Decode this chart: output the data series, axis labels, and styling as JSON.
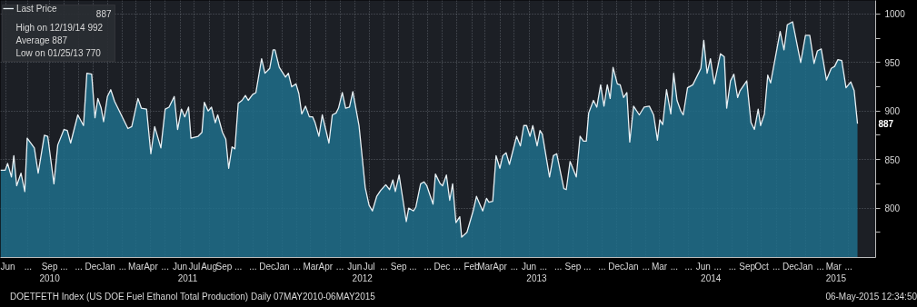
{
  "chart_data": {
    "type": "area",
    "series": [
      {
        "name": "Last Price",
        "color": "#1f6f8b",
        "x": [
          "2010-06-04",
          "2010-06-14",
          "2010-06-19",
          "2010-06-27",
          "2010-07-02",
          "2010-07-08",
          "2010-07-17",
          "2010-07-25",
          "2010-07-30",
          "2010-08-14",
          "2010-08-22",
          "2010-09-04",
          "2010-09-11",
          "2010-09-24",
          "2010-10-02",
          "2010-10-15",
          "2010-10-22",
          "2010-10-29",
          "2010-11-13",
          "2010-11-25",
          "2010-12-02",
          "2010-12-12",
          "2010-12-19",
          "2010-12-25",
          "2011-01-01",
          "2011-01-06",
          "2011-01-14",
          "2011-01-21",
          "2011-01-29",
          "2011-02-26",
          "2011-03-06",
          "2011-03-19",
          "2011-03-26",
          "2011-04-06",
          "2011-04-15",
          "2011-04-23",
          "2011-05-06",
          "2011-05-15",
          "2011-05-23",
          "2011-06-03",
          "2011-06-10",
          "2011-06-18",
          "2011-06-25",
          "2011-07-03",
          "2011-07-08",
          "2011-07-23",
          "2011-07-31",
          "2011-08-05",
          "2011-08-13",
          "2011-08-20",
          "2011-08-28",
          "2011-09-02",
          "2011-09-12",
          "2011-09-19",
          "2011-09-25",
          "2011-10-02",
          "2011-10-08",
          "2011-10-15",
          "2011-10-23",
          "2011-10-30",
          "2011-11-05",
          "2011-11-14",
          "2011-11-21",
          "2011-12-03",
          "2011-12-10",
          "2011-12-20",
          "2011-12-27",
          "2011-12-31",
          "2012-01-09",
          "2012-01-22",
          "2012-01-28",
          "2012-02-04",
          "2012-02-13",
          "2012-02-19",
          "2012-02-25",
          "2012-03-04",
          "2012-03-12",
          "2012-03-19",
          "2012-03-24",
          "2012-04-01",
          "2012-04-08",
          "2012-04-22",
          "2012-04-29",
          "2012-05-07",
          "2012-05-12",
          "2012-05-20",
          "2012-05-27",
          "2012-06-04",
          "2012-06-11",
          "2012-06-24",
          "2012-07-07",
          "2012-07-15",
          "2012-07-22",
          "2012-07-31",
          "2012-08-08",
          "2012-08-19",
          "2012-08-27",
          "2012-09-03",
          "2012-09-08",
          "2012-09-16",
          "2012-10-01",
          "2012-10-06",
          "2012-10-16",
          "2012-10-21",
          "2012-10-31",
          "2012-11-07",
          "2012-11-13",
          "2012-11-26",
          "2012-12-01",
          "2012-12-11",
          "2012-12-16",
          "2012-12-24",
          "2012-12-31",
          "2013-01-06",
          "2013-01-13",
          "2013-01-21",
          "2013-01-25",
          "2013-02-05",
          "2013-02-18",
          "2013-02-25",
          "2013-03-10",
          "2013-03-18",
          "2013-03-23",
          "2013-03-31",
          "2013-04-07",
          "2013-04-15",
          "2013-04-21",
          "2013-04-28",
          "2013-05-05",
          "2013-05-20",
          "2013-05-28",
          "2013-06-04",
          "2013-06-10",
          "2013-06-17",
          "2013-06-23",
          "2013-07-02",
          "2013-07-08",
          "2013-07-13",
          "2013-07-28",
          "2013-08-05",
          "2013-08-12",
          "2013-08-27",
          "2013-09-01",
          "2013-09-09",
          "2013-09-22",
          "2013-09-30",
          "2013-10-07",
          "2013-10-13",
          "2013-10-18",
          "2013-10-28",
          "2013-11-04",
          "2013-11-12",
          "2013-11-19",
          "2013-11-26",
          "2013-12-02",
          "2013-12-08",
          "2013-12-17",
          "2013-12-23",
          "2013-12-30",
          "2014-01-06",
          "2014-01-12",
          "2014-01-20",
          "2014-02-01",
          "2014-02-11",
          "2014-02-22",
          "2014-03-03",
          "2014-03-11",
          "2014-03-16",
          "2014-03-22",
          "2014-03-30",
          "2014-04-08",
          "2014-04-14",
          "2014-04-21",
          "2014-04-29",
          "2014-05-04",
          "2014-05-13",
          "2014-05-24",
          "2014-06-05",
          "2014-06-10",
          "2014-06-16",
          "2014-06-23",
          "2014-06-30",
          "2014-07-08",
          "2014-07-21",
          "2014-07-29",
          "2014-08-03",
          "2014-08-11",
          "2014-08-18",
          "2014-08-26",
          "2014-08-31",
          "2014-09-14",
          "2014-09-23",
          "2014-09-30",
          "2014-10-08",
          "2014-10-13",
          "2014-10-21",
          "2014-10-28",
          "2014-11-03",
          "2014-11-23",
          "2014-12-01",
          "2014-12-08",
          "2014-12-19",
          "2015-01-05",
          "2015-01-15",
          "2015-01-24",
          "2015-02-02",
          "2015-02-09",
          "2015-02-17",
          "2015-02-28",
          "2015-03-10",
          "2015-03-17",
          "2015-03-24",
          "2015-04-01",
          "2015-04-10",
          "2015-04-20",
          "2015-04-27",
          "2015-05-04"
        ],
        "values": [
          839,
          839,
          846,
          832,
          854,
          823,
          836,
          817,
          872,
          862,
          836,
          875,
          874,
          825,
          865,
          881,
          880,
          867,
          896,
          885,
          939,
          938,
          893,
          913,
          903,
          889,
          915,
          922,
          910,
          882,
          884,
          913,
          903,
          902,
          856,
          884,
          862,
          902,
          904,
          915,
          881,
          902,
          894,
          904,
          872,
          874,
          878,
          909,
          900,
          904,
          888,
          896,
          878,
          871,
          841,
          863,
          861,
          908,
          911,
          916,
          911,
          917,
          919,
          954,
          939,
          944,
          963,
          963,
          945,
          935,
          939,
          925,
          928,
          918,
          897,
          905,
          894,
          894,
          888,
          874,
          896,
          867,
          896,
          898,
          903,
          919,
          903,
          904,
          920,
          885,
          821,
          803,
          797,
          812,
          818,
          824,
          819,
          829,
          817,
          834,
          786,
          800,
          797,
          801,
          825,
          827,
          823,
          804,
          835,
          825,
          823,
          834,
          808,
          825,
          785,
          791,
          770,
          775,
          797,
          812,
          797,
          810,
          806,
          807,
          854,
          841,
          854,
          857,
          845,
          874,
          864,
          885,
          885,
          874,
          885,
          864,
          880,
          876,
          832,
          854,
          856,
          820,
          819,
          848,
          832,
          874,
          869,
          869,
          898,
          911,
          904,
          927,
          905,
          927,
          913,
          945,
          928,
          927,
          914,
          919,
          868,
          905,
          896,
          904,
          905,
          896,
          870,
          891,
          886,
          922,
          897,
          939,
          911,
          900,
          896,
          924,
          927,
          939,
          944,
          973,
          939,
          954,
          928,
          959,
          956,
          903,
          931,
          938,
          914,
          921,
          931,
          888,
          881,
          902,
          885,
          897,
          937,
          929,
          982,
          963,
          989,
          992,
          950,
          978,
          978,
          949,
          962,
          964,
          932,
          944,
          946,
          953,
          952,
          924,
          930,
          921,
          887
        ]
      }
    ],
    "xlim": [
      "2010-06-04",
      "2015-06-11"
    ],
    "ylim": [
      749,
      1014
    ],
    "xticks": [
      {
        "value": "2010-06-15",
        "label": "Jun"
      },
      {
        "value": "2010-08-01",
        "label": "..."
      },
      {
        "value": "2010-09-15",
        "label": "Sep"
      },
      {
        "value": "2010-10-15",
        "label": "..."
      },
      {
        "value": "2010-11-15",
        "label": "..."
      },
      {
        "value": "2010-12-15",
        "label": "Dec"
      },
      {
        "value": "2011-01-15",
        "label": "Jan"
      },
      {
        "value": "2011-02-15",
        "label": "..."
      },
      {
        "value": "2011-03-15",
        "label": "Mar"
      },
      {
        "value": "2011-04-15",
        "label": "Apr"
      },
      {
        "value": "2011-05-15",
        "label": "..."
      },
      {
        "value": "2011-06-15",
        "label": "Jun"
      },
      {
        "value": "2011-07-15",
        "label": "Jul"
      },
      {
        "value": "2011-08-15",
        "label": "Aug"
      },
      {
        "value": "2011-09-15",
        "label": "Sep"
      },
      {
        "value": "2011-10-15",
        "label": "..."
      },
      {
        "value": "2011-11-15",
        "label": "..."
      },
      {
        "value": "2011-12-15",
        "label": "Dec"
      },
      {
        "value": "2012-01-15",
        "label": "Jan"
      },
      {
        "value": "2012-02-15",
        "label": "..."
      },
      {
        "value": "2012-03-15",
        "label": "Mar"
      },
      {
        "value": "2012-04-15",
        "label": "Apr"
      },
      {
        "value": "2012-05-15",
        "label": "..."
      },
      {
        "value": "2012-06-15",
        "label": "Jun"
      },
      {
        "value": "2012-07-15",
        "label": "Jul"
      },
      {
        "value": "2012-08-15",
        "label": "..."
      },
      {
        "value": "2012-09-15",
        "label": "Sep"
      },
      {
        "value": "2012-10-15",
        "label": "..."
      },
      {
        "value": "2012-11-15",
        "label": "..."
      },
      {
        "value": "2012-12-15",
        "label": "Dec"
      },
      {
        "value": "2013-01-15",
        "label": "..."
      },
      {
        "value": "2013-02-15",
        "label": "Feb"
      },
      {
        "value": "2013-03-15",
        "label": "Mar"
      },
      {
        "value": "2013-04-15",
        "label": "Apr"
      },
      {
        "value": "2013-05-15",
        "label": "..."
      },
      {
        "value": "2013-06-15",
        "label": "Jun"
      },
      {
        "value": "2013-07-15",
        "label": "..."
      },
      {
        "value": "2013-08-15",
        "label": "..."
      },
      {
        "value": "2013-09-15",
        "label": "Sep"
      },
      {
        "value": "2013-10-15",
        "label": "..."
      },
      {
        "value": "2013-11-15",
        "label": "..."
      },
      {
        "value": "2013-12-15",
        "label": "Dec"
      },
      {
        "value": "2014-01-15",
        "label": "Jan"
      },
      {
        "value": "2014-02-15",
        "label": "..."
      },
      {
        "value": "2014-03-15",
        "label": "Mar"
      },
      {
        "value": "2014-04-15",
        "label": "..."
      },
      {
        "value": "2014-05-15",
        "label": "..."
      },
      {
        "value": "2014-06-15",
        "label": "Jun"
      },
      {
        "value": "2014-07-15",
        "label": "..."
      },
      {
        "value": "2014-08-15",
        "label": "..."
      },
      {
        "value": "2014-09-15",
        "label": "Sep"
      },
      {
        "value": "2014-10-15",
        "label": "Oct"
      },
      {
        "value": "2014-11-15",
        "label": "..."
      },
      {
        "value": "2014-12-15",
        "label": "Dec"
      },
      {
        "value": "2015-01-15",
        "label": "Jan"
      },
      {
        "value": "2015-02-15",
        "label": "..."
      },
      {
        "value": "2015-03-15",
        "label": "Mar"
      },
      {
        "value": "2015-04-15",
        "label": "..."
      }
    ],
    "x2lim": [
      "2010-06-04",
      "2015-06-11"
    ],
    "x2ticks": [
      {
        "value": "2010-09-15",
        "label": "2010"
      },
      {
        "value": "2011-07-01",
        "label": "2011"
      },
      {
        "value": "2012-07-01",
        "label": "2012"
      },
      {
        "value": "2013-07-01",
        "label": "2013"
      },
      {
        "value": "2014-07-01",
        "label": "2014"
      },
      {
        "value": "2015-03-20",
        "label": "2015"
      }
    ],
    "yticks": [
      {
        "value": 775,
        "label": null
      },
      800,
      {
        "value": 825,
        "label": null
      },
      850,
      {
        "value": 875,
        "label": null
      },
      900,
      {
        "value": 925,
        "label": null
      },
      950,
      {
        "value": 975,
        "label": null
      },
      1000
    ],
    "grid": true,
    "legend": "top left",
    "annotations": [
      "887",
      "887",
      "High on 12/19/14 992",
      "Average 887",
      "Low on 01/25/13 770",
      "DOETFETH Index (US DOE Fuel Ethanol Total Production)  Daily 07MAY2010-06MAY2015",
      "06-May-2015 12:34:50"
    ]
  }
}
